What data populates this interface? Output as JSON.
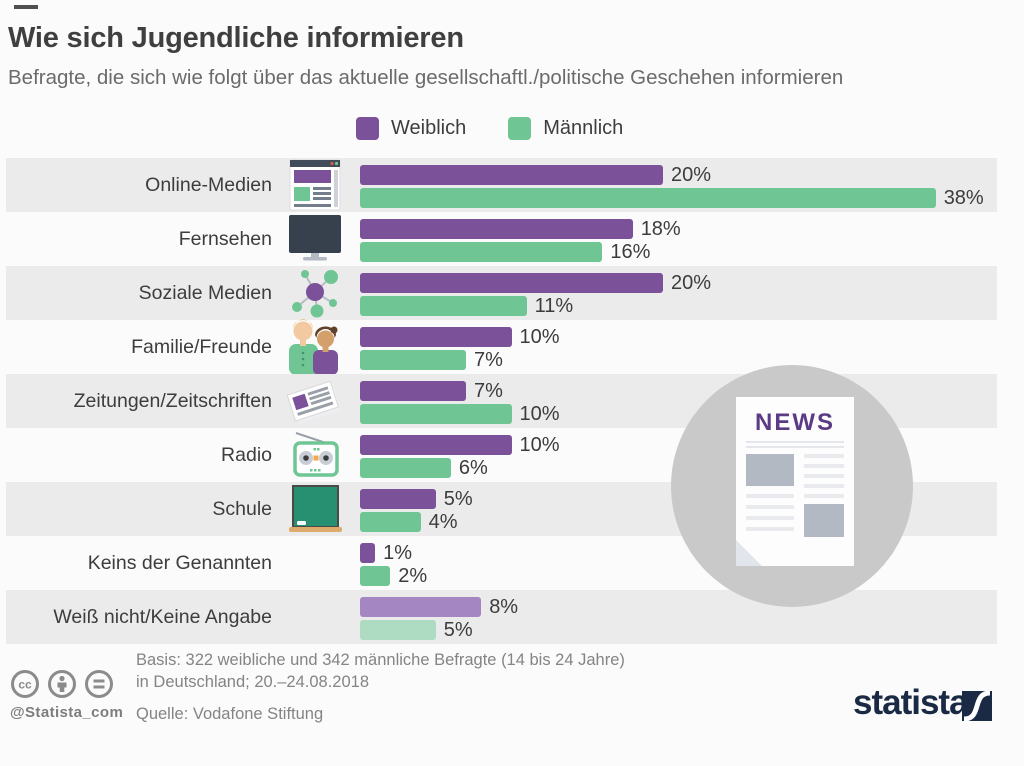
{
  "title": "Wie sich Jugendliche informieren",
  "subtitle": "Befragte, die sich wie folgt über das aktuelle gesellschaftl./politische Geschehen informieren",
  "colors": {
    "female": "#7b5199",
    "male": "#6fc594",
    "female_light": "#a486c2",
    "male_light": "#aedcc2",
    "row_band": "#ebebeb",
    "statista_navy": "#1b2a44",
    "news_purple": "#5c3b85"
  },
  "legend": {
    "items": [
      {
        "label": "Weiblich",
        "color": "#7b5199"
      },
      {
        "label": "Männlich",
        "color": "#6fc594"
      }
    ]
  },
  "chart_data": {
    "type": "bar",
    "orientation": "horizontal",
    "unit": "%",
    "xlim": [
      0,
      40
    ],
    "categories": [
      "Online-Medien",
      "Fernsehen",
      "Soziale Medien",
      "Familie/Freunde",
      "Zeitungen/Zeitschriften",
      "Radio",
      "Schule",
      "Keins der Genannten",
      "Weiß nicht/Keine Angabe"
    ],
    "icons": [
      "online-media-icon",
      "tv-icon",
      "social-network-icon",
      "family-icon",
      "newspaper-icon",
      "radio-icon",
      "chalkboard-icon",
      null,
      null
    ],
    "series": [
      {
        "name": "Weiblich",
        "color": "#7b5199",
        "light_color": "#a486c2",
        "values": [
          20,
          18,
          20,
          10,
          7,
          10,
          5,
          1,
          8
        ]
      },
      {
        "name": "Männlich",
        "color": "#6fc594",
        "light_color": "#aedcc2",
        "values": [
          38,
          16,
          11,
          7,
          10,
          6,
          4,
          2,
          5
        ]
      }
    ],
    "light_row_index": 8,
    "value_labels": [
      [
        "20%",
        "38%"
      ],
      [
        "18%",
        "16%"
      ],
      [
        "20%",
        "11%"
      ],
      [
        "10%",
        "7%"
      ],
      [
        "7%",
        "10%"
      ],
      [
        "10%",
        "6%"
      ],
      [
        "5%",
        "4%"
      ],
      [
        "1%",
        "2%"
      ],
      [
        "8%",
        "5%"
      ]
    ]
  },
  "illustration": {
    "news_label": "NEWS"
  },
  "footer": {
    "basis_line1": "Basis: 322 weibliche und 342 männliche Befragte (14 bis 24 Jahre)",
    "basis_line2": "in Deutschland; 20.–24.08.2018",
    "source": "Quelle: Vodafone Stiftung",
    "handle": "@Statista_com",
    "brand": "statista"
  }
}
